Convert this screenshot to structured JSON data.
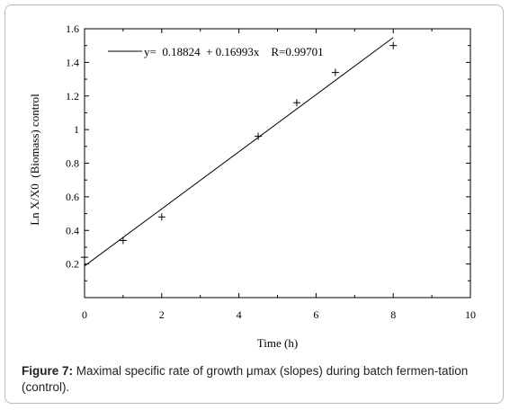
{
  "chart_data": {
    "type": "scatter",
    "xlabel": "Time (h)",
    "ylabel": "Ln X/X0  (Biomass) control",
    "xlim": [
      0,
      10
    ],
    "ylim": [
      0,
      1.6
    ],
    "x_ticks": [
      0,
      2,
      4,
      6,
      8,
      10
    ],
    "y_ticks": [
      0.2,
      0.4,
      0.6,
      0.8,
      1,
      1.2,
      1.4,
      1.6
    ],
    "x_tick_labels": [
      "0",
      "2",
      "4",
      "6",
      "8",
      "10"
    ],
    "y_tick_labels": [
      "0.2",
      "0.4",
      "0.6",
      "0.8",
      "1",
      "1.2",
      "1.4",
      "1.6"
    ],
    "points": [
      {
        "x": 0,
        "y": 0.24
      },
      {
        "x": 1,
        "y": 0.34
      },
      {
        "x": 2,
        "y": 0.48
      },
      {
        "x": 4.5,
        "y": 0.96
      },
      {
        "x": 5.5,
        "y": 1.16
      },
      {
        "x": 6.5,
        "y": 1.34
      },
      {
        "x": 8,
        "y": 1.5
      }
    ],
    "fit": {
      "intercept": 0.18824,
      "slope": 0.16993,
      "x_range": [
        0,
        8
      ]
    },
    "legend_text": "y=  0.18824  + 0.16993x    R=0.99701",
    "legend_position": "top-left",
    "grid": false
  },
  "caption": {
    "label": "Figure 7:",
    "text": " Maximal specific rate of growth μmax (slopes) during batch fermen-tation (control)."
  }
}
